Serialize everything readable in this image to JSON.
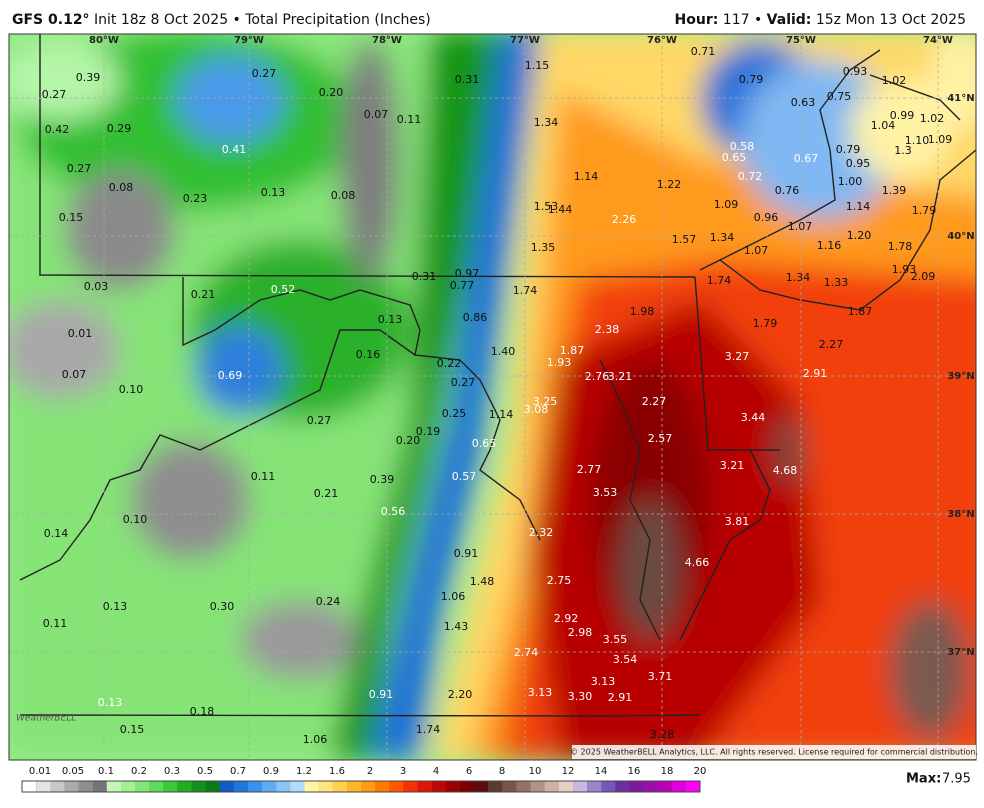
{
  "header": {
    "model": "GFS 0.12°",
    "init": "Init 18z 8 Oct 2025 • Total Precipitation (Inches)",
    "hour_label": "Hour:",
    "hour": "117 •",
    "valid_label": "Valid:",
    "valid": "15z Mon 13 Oct 2025"
  },
  "longitudes": [
    "80°W",
    "79°W",
    "78°W",
    "77°W",
    "76°W",
    "75°W",
    "74°W"
  ],
  "latitudes": [
    "41°N",
    "40°N",
    "39°N",
    "38°N",
    "37°N"
  ],
  "values": [
    "0.39",
    "0.27",
    "0.27",
    "0.20",
    "0.31",
    "1.15",
    "0.71",
    "0.79",
    "0.93",
    "1.02",
    "0.42",
    "0.29",
    "0.07",
    "0.11",
    "1.34",
    "0.63",
    "0.75",
    "0.99",
    "1.02",
    "1.04",
    "0.41",
    "0.58",
    "0.65",
    "0.67",
    "0.79",
    "1.10",
    "1.09",
    "1.3",
    "0.27",
    "0.95",
    "0.72",
    "1.14",
    "1.22",
    "1.00",
    "0.08",
    "0.13",
    "0.08",
    "0.23",
    "0.76",
    "1.39",
    "1.09",
    "1.53",
    "1.44",
    "0.15",
    "0.96",
    "1.14",
    "1.79",
    "2.26",
    "1.07",
    "1.34",
    "1.57",
    "1.20",
    "1.16",
    "1.78",
    "1.35",
    "1.07",
    "1.93",
    "2.09",
    "0.31",
    "0.97",
    "0.77",
    "1.74",
    "1.34",
    "1.33",
    "0.03",
    "0.21",
    "0.52",
    "1.74",
    "1.98",
    "1.87",
    "0.13",
    "0.86",
    "2.38",
    "1.79",
    "0.01",
    "1.87",
    "2.27",
    "1.40",
    "0.16",
    "3.27",
    "0.22",
    "1.93",
    "0.07",
    "0.69",
    "2.76",
    "3.21",
    "2.91",
    "0.27",
    "0.10",
    "3.25",
    "2.27",
    "0.25",
    "1.14",
    "3.08",
    "3.44",
    "0.27",
    "0.19",
    "0.20",
    "2.57",
    "0.65",
    "3.21",
    "4.68",
    "2.77",
    "0.11",
    "0.39",
    "0.57",
    "0.21",
    "3.53",
    "0.10",
    "0.56",
    "3.81",
    "0.14",
    "2.32",
    "0.91",
    "4.66",
    "2.75",
    "1.48",
    "1.06",
    "0.13",
    "0.30",
    "0.24",
    "2.92",
    "0.11",
    "1.43",
    "2.98",
    "3.55",
    "2.74",
    "3.54",
    "3.71",
    "3.13",
    "0.91",
    "2.20",
    "3.13",
    "3.30",
    "2.91",
    "0.13",
    "0.18",
    "0.15",
    "1.74",
    "1.06",
    "3.28"
  ],
  "legend": {
    "labels": [
      "0.01",
      "0.05",
      "0.1",
      "0.2",
      "0.3",
      "0.5",
      "0.7",
      "0.9",
      "1.2",
      "1.6",
      "2",
      "3",
      "4",
      "6",
      "8",
      "10",
      "12",
      "14",
      "16",
      "18",
      "20"
    ],
    "colors": [
      "#ffffff",
      "#e4e4e4",
      "#c8c8c8",
      "#aaaaaa",
      "#8e8e8e",
      "#747474",
      "#c3f7b6",
      "#a2f195",
      "#7fe877",
      "#5cdc58",
      "#38c936",
      "#20ad1f",
      "#12901a",
      "#0d7a17",
      "#1558c8",
      "#1f74e0",
      "#3a90ee",
      "#60abf4",
      "#88c4f7",
      "#b2dcfb",
      "#fff5a6",
      "#ffe57a",
      "#ffcf4d",
      "#ffb52b",
      "#ff9a12",
      "#ff7b00",
      "#ff5600",
      "#f43006",
      "#dc160a",
      "#bd0606",
      "#9a0000",
      "#7a0000",
      "#5e0d0d",
      "#5b3a32",
      "#7a5448",
      "#96716a",
      "#b39189",
      "#cdb0a6",
      "#e3cfc4",
      "#c9b7e3",
      "#9d84cc",
      "#7757b4",
      "#6a2fa0",
      "#7c1a9a",
      "#9b10a8",
      "#bb00bb",
      "#dd00dd",
      "#ff00ff"
    ]
  },
  "max_label": "Max:",
  "max": "7.95",
  "copyright": "© 2025 WeatherBELL Analytics, LLC. All rights reserved. License required for commercial distribution.",
  "logo": "WeatherBELL"
}
